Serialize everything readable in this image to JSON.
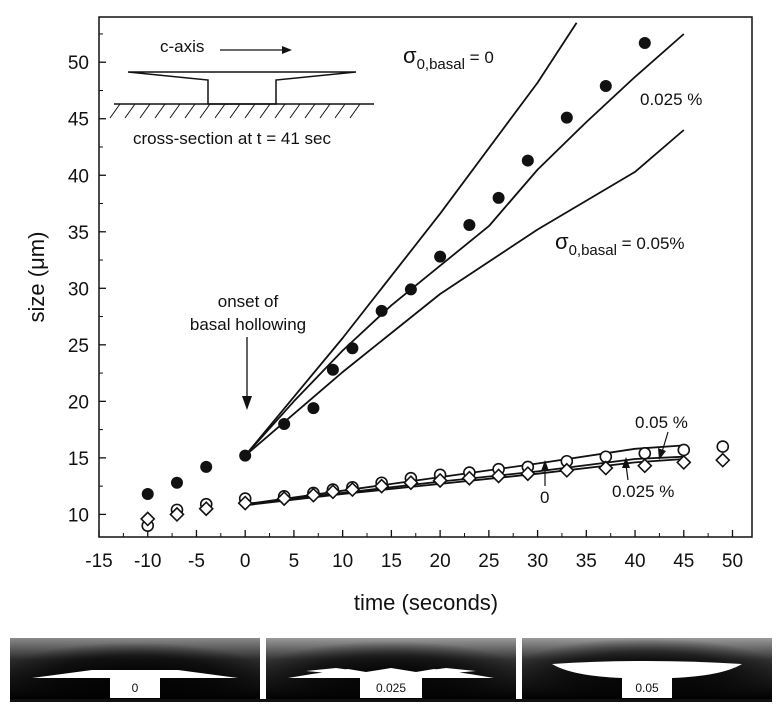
{
  "chart_data": {
    "type": "scatter",
    "xlabel": "time (seconds)",
    "ylabel_prefix": "size (",
    "ylabel_mu": "μ",
    "ylabel_suffix": "m)",
    "xlim": [
      -15,
      52
    ],
    "ylim": [
      8,
      54
    ],
    "xticks": [
      -15,
      -10,
      -5,
      0,
      5,
      10,
      15,
      20,
      25,
      30,
      35,
      40,
      45,
      50
    ],
    "yticks": [
      10,
      15,
      20,
      25,
      30,
      35,
      40,
      45,
      50
    ],
    "series": [
      {
        "name": "basal size (filled circles)",
        "marker": "filled-circle",
        "x": [
          -10,
          -7,
          -4,
          0,
          4,
          7,
          9,
          11,
          14,
          17,
          20,
          23,
          26,
          29,
          33,
          37,
          41
        ],
        "y": [
          11.8,
          12.8,
          14.2,
          15.2,
          18.0,
          19.4,
          22.8,
          24.7,
          28.0,
          29.9,
          32.8,
          35.6,
          38.0,
          41.3,
          45.1,
          47.9,
          51.7
        ]
      },
      {
        "name": "prism size (open circles)",
        "marker": "open-circle",
        "x": [
          -10,
          -7,
          -4,
          0,
          4,
          7,
          9,
          11,
          14,
          17,
          20,
          23,
          26,
          29,
          33,
          37,
          41,
          45,
          49
        ],
        "y": [
          9.0,
          10.4,
          10.9,
          11.4,
          11.6,
          11.9,
          12.2,
          12.4,
          12.8,
          13.2,
          13.5,
          13.7,
          14.0,
          14.2,
          14.7,
          15.1,
          15.4,
          15.7,
          16.0
        ]
      },
      {
        "name": "prism size (open diamonds)",
        "marker": "open-diamond",
        "x": [
          -10,
          -7,
          -4,
          0,
          4,
          7,
          9,
          11,
          14,
          17,
          20,
          23,
          26,
          29,
          33,
          37,
          41,
          45,
          49
        ],
        "y": [
          9.6,
          10.0,
          10.5,
          11.0,
          11.4,
          11.7,
          12.0,
          12.2,
          12.5,
          12.8,
          13.0,
          13.2,
          13.4,
          13.6,
          13.9,
          14.1,
          14.3,
          14.6,
          14.8
        ]
      }
    ],
    "model_curves": [
      {
        "name": "basal sigma 0",
        "x": [
          0,
          10,
          20,
          30,
          34
        ],
        "y": [
          15.2,
          25.6,
          36.6,
          48.2,
          53.5
        ]
      },
      {
        "name": "basal 0.025 %",
        "x": [
          0,
          5,
          10,
          15,
          20,
          25,
          30,
          35,
          40,
          45
        ],
        "y": [
          15.2,
          20.0,
          24.5,
          28.5,
          32.0,
          35.5,
          40.5,
          44.7,
          48.7,
          52.5
        ]
      },
      {
        "name": "basal 0.05%",
        "x": [
          0,
          10,
          20,
          30,
          40,
          45
        ],
        "y": [
          15.2,
          22.6,
          29.5,
          35.2,
          40.3,
          44.0
        ]
      },
      {
        "name": "prism 0.05 %",
        "x": [
          0,
          10,
          20,
          30,
          40,
          45
        ],
        "y": [
          10.9,
          12.1,
          13.3,
          14.5,
          15.8,
          16.1
        ]
      },
      {
        "name": "prism 0.025 %",
        "x": [
          0,
          10,
          20,
          30,
          40,
          45
        ],
        "y": [
          10.9,
          11.9,
          12.9,
          13.8,
          14.9,
          15.1
        ]
      },
      {
        "name": "prism 0",
        "x": [
          0,
          10,
          20,
          30,
          40,
          45
        ],
        "y": [
          10.8,
          11.8,
          12.7,
          13.6,
          14.6,
          14.9
        ]
      }
    ],
    "annotations": {
      "sigma_top_main": "σ",
      "sigma_top_sub": "0,basal",
      "sigma_top_rest": " = 0",
      "basal_025": "0.025 %",
      "sigma_mid_main": "σ",
      "sigma_mid_sub": "0,basal",
      "sigma_mid_rest": " = 0.05%",
      "onset_line1": "onset of",
      "onset_line2": "basal hollowing",
      "prism_05": "0.05 %",
      "prism_025": "0.025 %",
      "prism_0": "0",
      "inset_axis": "c-axis",
      "inset_caption": "cross-section at t = 41 sec"
    }
  },
  "panels": [
    {
      "label": "0"
    },
    {
      "label": "0.025"
    },
    {
      "label": "0.05"
    }
  ],
  "colors": {
    "ink": "#111111",
    "background": "#ffffff"
  }
}
